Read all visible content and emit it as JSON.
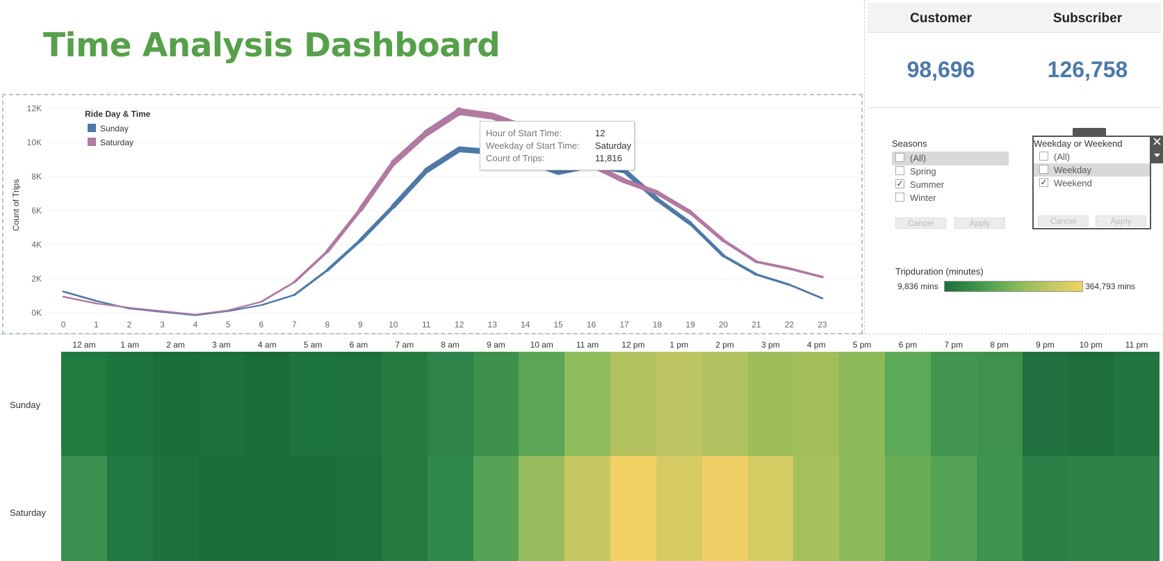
{
  "title": "Time Analysis Dashboard",
  "kpi": {
    "customer_label": "Customer",
    "customer_value": "98,696",
    "subscriber_label": "Subscriber",
    "subscriber_value": "126,758"
  },
  "chart_data": [
    {
      "type": "line",
      "title": "",
      "xlabel": "",
      "ylabel": "Count of Trips",
      "x": [
        0,
        1,
        2,
        3,
        4,
        5,
        6,
        7,
        8,
        9,
        10,
        11,
        12,
        13,
        14,
        15,
        16,
        17,
        18,
        19,
        20,
        21,
        22,
        23
      ],
      "xlim": [
        0,
        23
      ],
      "ylim": [
        0,
        12000
      ],
      "yticks": [
        0,
        2000,
        4000,
        6000,
        8000,
        10000,
        12000
      ],
      "ytick_labels": [
        "0K",
        "2K",
        "4K",
        "6K",
        "8K",
        "10K",
        "12K"
      ],
      "legend": {
        "title": "Ride Day & Time",
        "position": "top-left"
      },
      "series": [
        {
          "name": "Sunday",
          "color": "#4e79a7",
          "values": [
            1250,
            700,
            250,
            50,
            -150,
            100,
            450,
            1050,
            2500,
            4250,
            6250,
            8350,
            9600,
            9450,
            8950,
            8250,
            8650,
            8350,
            6650,
            5250,
            3350,
            2250,
            1650,
            850
          ]
        },
        {
          "name": "Saturday",
          "color": "#b07aa1",
          "values": [
            950,
            550,
            300,
            100,
            -100,
            150,
            650,
            1800,
            3600,
            6050,
            8800,
            10550,
            11816,
            11550,
            10850,
            9400,
            8700,
            7750,
            7050,
            5900,
            4250,
            3000,
            2600,
            2100
          ]
        }
      ],
      "tooltip": {
        "hour_label": "Hour of Start Time:",
        "hour_value": "12",
        "weekday_label": "Weekday of Start Time:",
        "weekday_value": "Saturday",
        "count_label": "Count of Trips:",
        "count_value": "11,816"
      }
    },
    {
      "type": "heatmap",
      "title": "",
      "columns": [
        "12 am",
        "1 am",
        "2 am",
        "3 am",
        "4 am",
        "5 am",
        "6 am",
        "7 am",
        "8 am",
        "9 am",
        "10 am",
        "11 am",
        "12 pm",
        "1 pm",
        "2 pm",
        "3 pm",
        "4 pm",
        "5 pm",
        "6 pm",
        "7 pm",
        "8 pm",
        "9 pm",
        "10 pm",
        "11 pm"
      ],
      "rows": [
        "Sunday",
        "Saturday"
      ],
      "value_label": "Tripduration (minutes)",
      "min_label": "9,836 mins",
      "max_label": "364,793 mins",
      "color_range": [
        "#1e6e3a",
        "#f0d264"
      ],
      "colors": [
        [
          "#217a40",
          "#1e743d",
          "#1a6e38",
          "#1c703a",
          "#1a6d38",
          "#1e743d",
          "#1d723b",
          "#267b41",
          "#2e844a",
          "#3d914d",
          "#5aa556",
          "#8fbd5d",
          "#b3c15f",
          "#bdc563",
          "#b0c360",
          "#9ebe5b",
          "#a1be5b",
          "#8dba5a",
          "#5ca958",
          "#43964f",
          "#3f924d",
          "#217240",
          "#1d6e3b",
          "#217540"
        ],
        [
          "#3a9150",
          "#217840",
          "#1c703b",
          "#1b6d38",
          "#1a6c38",
          "#1a6d38",
          "#1b6f39",
          "#247a41",
          "#2f874a",
          "#56a356",
          "#97bc5e",
          "#c6c962",
          "#f2d165",
          "#d7cc64",
          "#f0d066",
          "#d4cd63",
          "#a6c05c",
          "#8cba5b",
          "#69ad56",
          "#57a356",
          "#3d944f",
          "#2a7f46",
          "#2d8247",
          "#2e8147"
        ]
      ]
    }
  ],
  "seasons_filter": {
    "title": "Seasons",
    "options": [
      {
        "label": "(All)",
        "checked": ""
      },
      {
        "label": "Spring",
        "checked": ""
      },
      {
        "label": "Summer",
        "checked": "✓"
      },
      {
        "label": "Winter",
        "checked": ""
      }
    ],
    "cancel_label": "Cancel",
    "apply_label": "Apply"
  },
  "weekday_filter": {
    "title": "Weekday or Weekend",
    "options": [
      {
        "label": "(All)",
        "checked": ""
      },
      {
        "label": "Weekday",
        "checked": ""
      },
      {
        "label": "Weekend",
        "checked": "✓"
      }
    ],
    "cancel_label": "Cancel",
    "apply_label": "Apply",
    "close_icon": "close-icon",
    "menu_icon": "dropdown-arrow-icon"
  },
  "colors": {
    "title": "#57a04b",
    "kpi_value": "#4e79a7",
    "sunday": "#4e79a7",
    "saturday": "#b07aa1"
  }
}
